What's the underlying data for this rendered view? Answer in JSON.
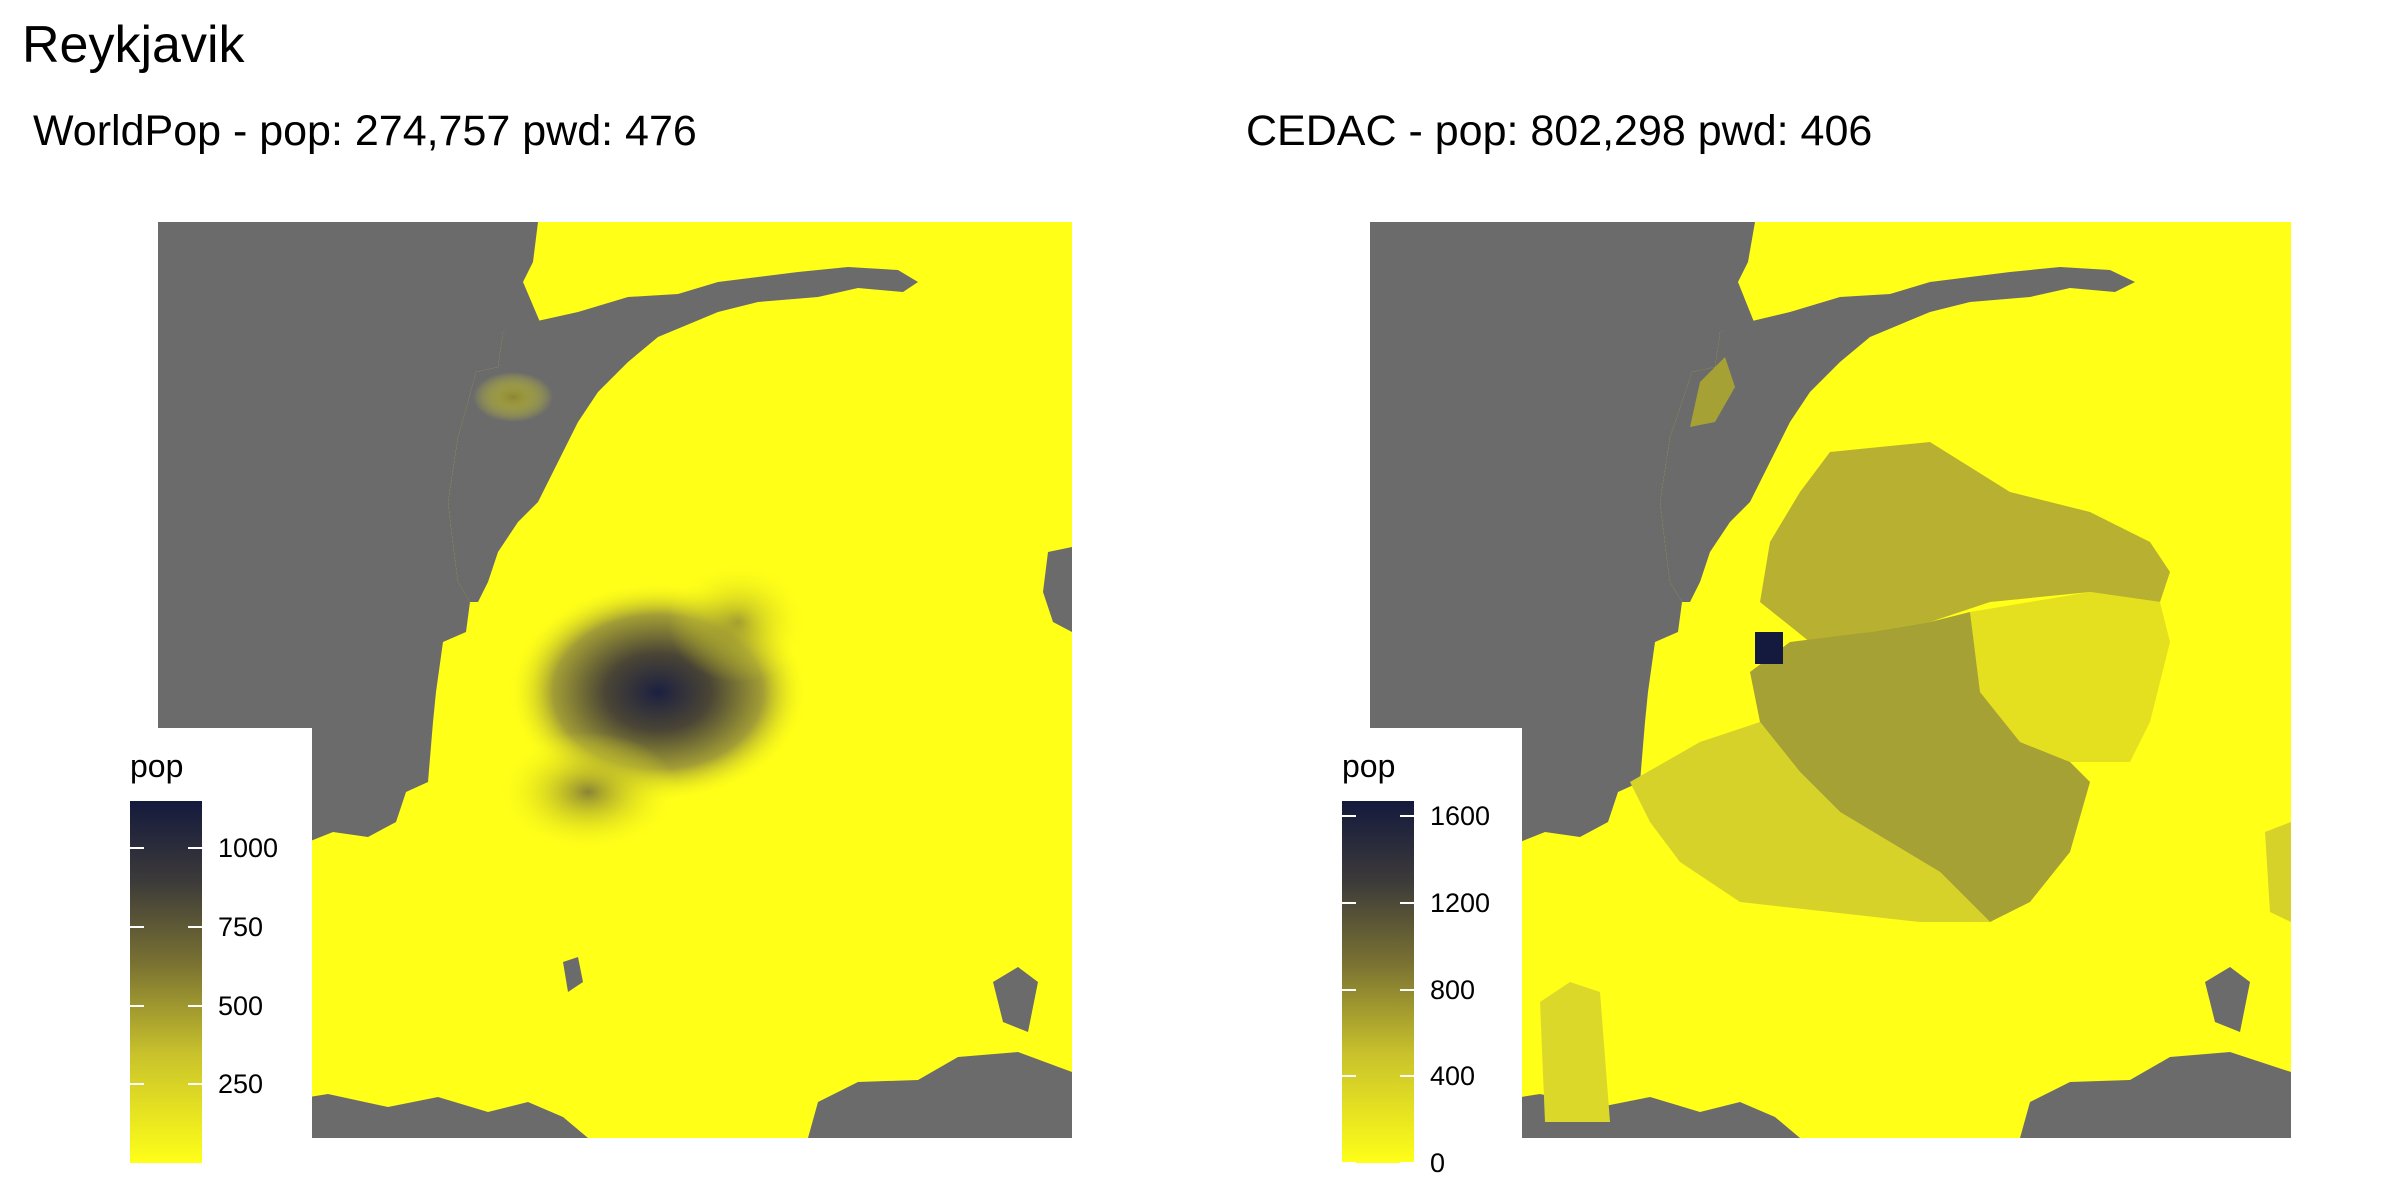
{
  "title": "Reykjavik",
  "colors": {
    "no_data": "#6b6b6b",
    "pop_low": "#ffff18",
    "pop_high": "#141a3d",
    "background": "#ffffff"
  },
  "panels": [
    {
      "title": "WorldPop - pop: 274,757 pwd: 476",
      "source": "WorldPop",
      "pop": 274757,
      "pwd": 476,
      "legend": {
        "title": "pop",
        "min": 0,
        "max": 1150,
        "ticks": [
          "250",
          "500",
          "750",
          "1000"
        ],
        "tick_values": [
          250,
          500,
          750,
          1000
        ]
      }
    },
    {
      "title": "CEDAC - pop: 802,298 pwd: 406",
      "source": "CEDAC",
      "pop": 802298,
      "pwd": 406,
      "legend": {
        "title": "pop",
        "min": 0,
        "max": 1670,
        "ticks": [
          "0",
          "400",
          "800",
          "1200",
          "1600"
        ],
        "tick_values": [
          0,
          400,
          800,
          1200,
          1600
        ]
      }
    }
  ]
}
